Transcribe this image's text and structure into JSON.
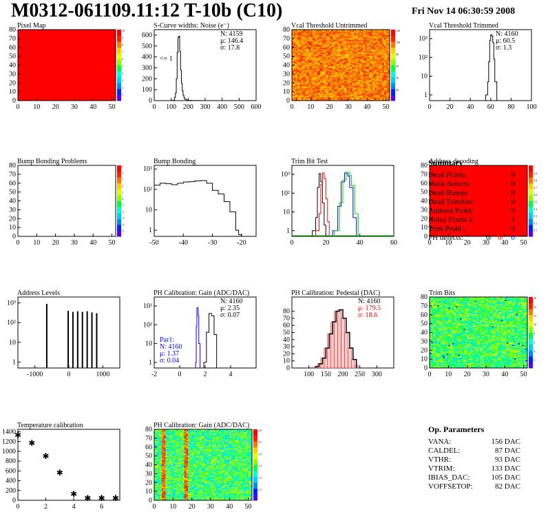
{
  "header": {
    "title": "M0312-061109.11:12 T-10b (C10)",
    "date": "Fri Nov 14 06:30:59 2008"
  },
  "colors": {
    "red": "#ff0000",
    "blue": "#0000ff",
    "green": "#00cc00",
    "black": "#000000"
  },
  "chart_data": [
    {
      "id": "pixel-map",
      "type": "heatmap",
      "title": "Pixel Map",
      "xlim": [
        0,
        52
      ],
      "ylim": [
        0,
        80
      ],
      "xticks": [
        "0",
        "10",
        "20",
        "30",
        "40",
        "50"
      ],
      "yticks": [
        "0",
        "10",
        "20",
        "30",
        "40",
        "50",
        "60",
        "70",
        "80"
      ],
      "fill": "uniform-max",
      "zticks": [
        "1",
        "2",
        "3",
        "4",
        "5",
        "6",
        "7",
        "8",
        "9",
        "10"
      ]
    },
    {
      "id": "scurve-noise",
      "type": "line",
      "title": "S-Curve widths: Noise (e⁻)",
      "xlim": [
        0,
        600
      ],
      "ylim": [
        0,
        650
      ],
      "xticks": [
        "0",
        "100",
        "200",
        "300",
        "400",
        "500",
        "600"
      ],
      "yticks": [
        "0",
        "100",
        "200",
        "300",
        "400",
        "500",
        "600"
      ],
      "x": [
        100,
        110,
        120,
        125,
        130,
        135,
        140,
        145,
        150,
        155,
        160,
        165,
        170,
        175,
        180,
        190,
        200,
        220,
        250,
        280
      ],
      "y": [
        0,
        4,
        30,
        70,
        200,
        440,
        580,
        590,
        450,
        280,
        160,
        90,
        50,
        25,
        12,
        5,
        2,
        1,
        1,
        0
      ],
      "stats": {
        "N": "N: 4159",
        "mu": "μ: 146.4",
        "sigma": "σ: 17.8"
      },
      "annotation": "<= 1"
    },
    {
      "id": "vcal-untrimmed",
      "type": "heatmap",
      "title": "Vcal Threshold Untrimmed",
      "xlim": [
        0,
        52
      ],
      "ylim": [
        0,
        80
      ],
      "xticks": [
        "0",
        "10",
        "20",
        "30",
        "40",
        "50"
      ],
      "yticks": [
        "0",
        "10",
        "20",
        "30",
        "40",
        "50",
        "60",
        "70",
        "80"
      ],
      "fill": "noisy-warm",
      "zticks": [
        "20",
        "40",
        "60",
        "80",
        "100",
        "120"
      ]
    },
    {
      "id": "vcal-trimmed",
      "type": "line",
      "title": "Vcal Threshold Trimmed",
      "xlim": [
        0,
        100
      ],
      "log_y": true,
      "ylim": [
        0.5,
        3000
      ],
      "xticks": [
        "0",
        "20",
        "40",
        "60",
        "80",
        "100"
      ],
      "yticks": [
        "1",
        "10",
        "10²",
        "10³"
      ],
      "x": [
        55,
        57,
        58,
        59,
        60,
        61,
        62,
        63,
        64,
        66
      ],
      "y": [
        1,
        5,
        60,
        800,
        1600,
        1400,
        600,
        80,
        5,
        1
      ],
      "stats": {
        "N": "N: 4160",
        "mu": "μ: 60.5",
        "sigma": "σ:  1.3"
      }
    },
    {
      "id": "bump-bonding-problems",
      "type": "heatmap",
      "title": "Bump Bonding Problems",
      "xlim": [
        0,
        52
      ],
      "ylim": [
        0,
        80
      ],
      "xticks": [
        "0",
        "10",
        "20",
        "30",
        "40",
        "50"
      ],
      "yticks": [
        "0",
        "10",
        "20",
        "30",
        "40",
        "50",
        "60",
        "70",
        "80"
      ],
      "fill": "empty",
      "zticks": [
        "-5",
        "-4",
        "-3",
        "-2",
        "-1",
        "0",
        "1",
        "2",
        "3",
        "4",
        "5"
      ]
    },
    {
      "id": "bump-bonding",
      "type": "line",
      "title": "Bump Bonding",
      "xlim": [
        -50,
        -15
      ],
      "log_y": true,
      "ylim": [
        0.5,
        1500
      ],
      "xticks": [
        "-50",
        "-40",
        "-30",
        "-20"
      ],
      "yticks": [
        "1",
        "10",
        "10²",
        "10³"
      ],
      "x": [
        -50,
        -48,
        -46,
        -44,
        -42,
        -40,
        -38,
        -36,
        -34,
        -32,
        -30,
        -28,
        -26,
        -24,
        -22,
        -21,
        -20
      ],
      "y": [
        160,
        200,
        190,
        170,
        200,
        230,
        240,
        260,
        270,
        200,
        90,
        60,
        25,
        8,
        1,
        0.6,
        0.6
      ]
    },
    {
      "id": "trim-bit-test",
      "type": "line",
      "title": "Trim Bit Test",
      "xlim": [
        0,
        60
      ],
      "log_y": true,
      "ylim": [
        0.5,
        3000
      ],
      "xticks": [
        "0",
        "20",
        "40",
        "60"
      ],
      "yticks": [
        "1",
        "10",
        "10²",
        "10³"
      ],
      "series": [
        {
          "color": "#000000",
          "x": [
            12,
            14,
            15,
            16,
            17,
            18,
            19,
            20
          ],
          "y": [
            1,
            5,
            200,
            1100,
            400,
            30,
            2,
            1
          ]
        },
        {
          "color": "#ff0000",
          "x": [
            14,
            16,
            17,
            18,
            19,
            20,
            21,
            22
          ],
          "y": [
            1,
            8,
            300,
            1200,
            600,
            50,
            3,
            1
          ]
        },
        {
          "color": "#0000ff",
          "x": [
            24,
            27,
            29,
            31,
            32,
            33,
            34,
            36,
            38
          ],
          "y": [
            1,
            20,
            400,
            1200,
            1100,
            800,
            200,
            5,
            1
          ]
        },
        {
          "color": "#00cc00",
          "x": [
            25,
            28,
            30,
            32,
            33,
            34,
            35,
            37,
            39
          ],
          "y": [
            1,
            30,
            500,
            1300,
            1300,
            900,
            250,
            8,
            1
          ]
        }
      ]
    },
    {
      "id": "address-decoding",
      "type": "heatmap",
      "title": "Address decoding",
      "xlim": [
        0,
        52
      ],
      "ylim": [
        0,
        80
      ],
      "xticks": [
        "0",
        "10",
        "20",
        "30",
        "40",
        "50"
      ],
      "yticks": [
        "0",
        "10",
        "20",
        "30",
        "40",
        "50",
        "60",
        "70",
        "80"
      ],
      "fill": "uniform-max",
      "zticks": [
        "0.1",
        "0.2",
        "0.3",
        "0.4",
        "0.5",
        "0.6",
        "0.7",
        "0.8",
        "0.9",
        "1"
      ]
    },
    {
      "id": "address-levels",
      "type": "bar",
      "title": "Address Levels",
      "xlim": [
        -1500,
        1500
      ],
      "log_y": true,
      "ylim": [
        0.5,
        2000
      ],
      "xticks": [
        "-1000",
        "0",
        "1000"
      ],
      "yticks": [
        "1",
        "10",
        "10²",
        "10³"
      ],
      "x": [
        -650,
        -20,
        120,
        260,
        400,
        540,
        680,
        820
      ],
      "y": [
        900,
        400,
        350,
        380,
        350,
        380,
        330,
        300
      ]
    },
    {
      "id": "ph-gain",
      "type": "line",
      "title": "PH Calibration: Gain (ADC/DAC)",
      "xlim": [
        -2,
        6
      ],
      "log_y": true,
      "ylim": [
        0.5,
        3000
      ],
      "xticks": [
        "-2",
        "0",
        "2",
        "4"
      ],
      "yticks": [
        "1",
        "10",
        "10²",
        "10³"
      ],
      "series": [
        {
          "color": "#000000",
          "x": [
            1.9,
            2.1,
            2.3,
            2.5,
            2.7,
            2.9
          ],
          "y": [
            1,
            40,
            400,
            300,
            30,
            1
          ]
        },
        {
          "color": "#0000ff",
          "x": [
            1.25,
            1.3,
            1.35,
            1.45,
            1.5,
            1.6
          ],
          "y": [
            1,
            80,
            800,
            300,
            10,
            1
          ]
        }
      ],
      "stats": {
        "N": "N: 4160",
        "mu": "μ: 2.35",
        "sigma": "σ: 0.07"
      },
      "par": {
        "label": "Par1:",
        "N": "N: 4160",
        "mu": "μ: 1.37",
        "sigma": "σ: 0.04"
      }
    },
    {
      "id": "ph-pedestal",
      "type": "bar",
      "title": "PH Calibration: Pedestal (DAC)",
      "xlim": [
        50,
        350
      ],
      "ylim": [
        0,
        100
      ],
      "xticks": [
        "100",
        "150",
        "200",
        "250",
        "300"
      ],
      "yticks": [
        "0",
        "10",
        "20",
        "30",
        "40",
        "50",
        "60",
        "70",
        "80"
      ],
      "x": [
        120,
        130,
        140,
        150,
        160,
        170,
        180,
        190,
        200,
        210,
        220,
        230,
        240
      ],
      "y": [
        2,
        6,
        14,
        28,
        48,
        65,
        80,
        82,
        70,
        50,
        28,
        12,
        4
      ],
      "stats": {
        "N": "N: 4160",
        "mu": "μ: 179.5",
        "sigma": "σ: 18.6"
      }
    },
    {
      "id": "trim-bits",
      "type": "heatmap",
      "title": "Trim Bits",
      "xlim": [
        0,
        52
      ],
      "ylim": [
        0,
        80
      ],
      "xticks": [
        "0",
        "10",
        "20",
        "30",
        "40",
        "50"
      ],
      "yticks": [
        "0",
        "10",
        "20",
        "30",
        "40",
        "50",
        "60",
        "70",
        "80"
      ],
      "fill": "noisy-greens",
      "zticks": [
        "2",
        "4",
        "6",
        "8",
        "10",
        "12",
        "14",
        "16"
      ]
    },
    {
      "id": "temperature-calibration",
      "type": "scatter",
      "title": "Temperature calibration",
      "xlim": [
        0,
        7.3
      ],
      "ylim": [
        0,
        1450
      ],
      "xticks": [
        "0",
        "2",
        "4",
        "6"
      ],
      "yticks": [
        "0",
        "200",
        "400",
        "600",
        "800",
        "1000",
        "1200",
        "1400"
      ],
      "x": [
        0,
        1,
        2,
        3,
        4,
        5,
        6,
        7
      ],
      "y": [
        1330,
        1170,
        900,
        560,
        130,
        40,
        40,
        40
      ]
    },
    {
      "id": "ph-gain-map",
      "type": "heatmap",
      "title": "PH Calibration: Gain (ADC/DAC)",
      "xlim": [
        0,
        52
      ],
      "ylim": [
        0,
        80
      ],
      "xticks": [
        "0",
        "10",
        "20",
        "30",
        "40",
        "50"
      ],
      "yticks": [
        "0",
        "10",
        "20",
        "30",
        "40",
        "50",
        "60",
        "70",
        "80"
      ],
      "fill": "noisy-gain",
      "zticks": [
        "2.1",
        "2.2",
        "2.3",
        "2.4",
        "2.5",
        "2.6"
      ]
    }
  ],
  "summary": {
    "heading": "Summary",
    "rows": [
      {
        "label": "Dead Pixels:",
        "value": "0"
      },
      {
        "label": "Mask defects:",
        "value": "0"
      },
      {
        "label": "Dead Bumps:",
        "value": "0"
      },
      {
        "label": "Dead Trimbits:",
        "value": "0"
      },
      {
        "label": "Address Probl:",
        "value": "0"
      },
      {
        "label": "Noisy Pixels 2:",
        "value": "1"
      },
      {
        "label": "Trim Probl.:",
        "value": "0"
      }
    ],
    "ph_defects": {
      "label": "PH defects:",
      "v1": "0/",
      "v2": "0/",
      "v3": "0"
    }
  },
  "parameters": {
    "heading": "Op. Parameters",
    "rows": [
      {
        "label": "VANA:",
        "value": "156 DAC"
      },
      {
        "label": "CALDEL:",
        "value": "87 DAC"
      },
      {
        "label": "VTHR:",
        "value": "93 DAC"
      },
      {
        "label": "VTRIM:",
        "value": "133 DAC"
      },
      {
        "label": "IBIAS_DAC:",
        "value": "105 DAC"
      },
      {
        "label": "VOFFSETOP:",
        "value": "82 DAC"
      }
    ]
  }
}
